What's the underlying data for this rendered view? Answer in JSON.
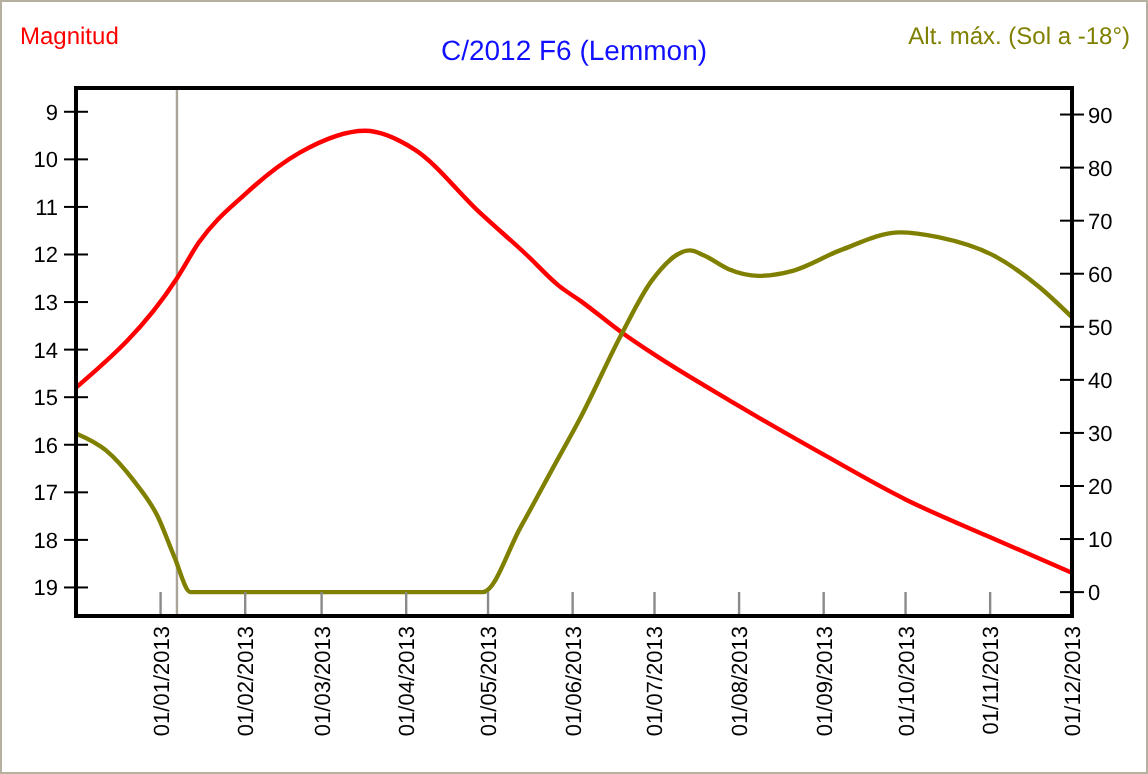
{
  "chart_data": {
    "type": "line",
    "title": "C/2012 F6 (Lemmon)",
    "ylabel": "Magnitud",
    "y2label": "Alt. máx. (Sol a -18°)",
    "xlim": [
      "2012-12-01",
      "2013-12-01"
    ],
    "xticks": [
      {
        "value": "2013-01-01",
        "label": "01/01/2013"
      },
      {
        "value": "2013-02-01",
        "label": "01/02/2013"
      },
      {
        "value": "2013-03-01",
        "label": "01/03/2013"
      },
      {
        "value": "2013-04-01",
        "label": "01/04/2013"
      },
      {
        "value": "2013-05-01",
        "label": "01/05/2013"
      },
      {
        "value": "2013-06-01",
        "label": "01/06/2013"
      },
      {
        "value": "2013-07-01",
        "label": "01/07/2013"
      },
      {
        "value": "2013-08-01",
        "label": "01/08/2013"
      },
      {
        "value": "2013-09-01",
        "label": "01/09/2013"
      },
      {
        "value": "2013-10-01",
        "label": "01/10/2013"
      },
      {
        "value": "2013-11-01",
        "label": "01/11/2013"
      },
      {
        "value": "2013-12-01",
        "label": "01/12/2013"
      }
    ],
    "ylim": [
      19.6,
      8.5
    ],
    "yticks": [
      9,
      10,
      11,
      12,
      13,
      14,
      15,
      16,
      17,
      18,
      19
    ],
    "y2lim": [
      -4.5,
      95
    ],
    "y2ticks": [
      0,
      10,
      20,
      30,
      40,
      50,
      60,
      70,
      80,
      90
    ],
    "grid": false,
    "marker": "none",
    "line_style": "solid",
    "ref_lines": [
      {
        "axis": "x",
        "value": "2013-01-07",
        "color": "#aaa596"
      }
    ],
    "series": [
      {
        "color": "#ff0000",
        "x": [
          "2012-12-01",
          "2013-01-07",
          "2013-01-15",
          "2013-02-01",
          "2013-02-21",
          "2013-03-17",
          "2013-04-04",
          "2013-04-28",
          "2013-05-15",
          "2013-05-27",
          "2013-06-04",
          "2013-06-19",
          "2013-06-30",
          "2013-07-30",
          "2013-09-02",
          "2013-10-01",
          "2013-10-31",
          "2013-12-01"
        ],
        "values": [
          14.8,
          12.5,
          11.75,
          10.73,
          9.86,
          9.4,
          9.79,
          11.12,
          12.0,
          12.66,
          12.98,
          13.64,
          14.07,
          15.12,
          16.24,
          17.15,
          17.92,
          18.69
        ]
      },
      {
        "color": "#808000",
        "axis": "y2",
        "x": [
          "2012-12-01",
          "2012-12-12",
          "2012-12-22",
          "2012-12-31",
          "2013-01-06",
          "2013-01-12",
          "2013-04-29",
          "2013-05-13",
          "2013-05-25",
          "2013-06-04",
          "2013-06-19",
          "2013-06-30",
          "2013-07-14",
          "2013-07-19",
          "2013-07-28",
          "2013-08-08",
          "2013-08-21",
          "2013-09-07",
          "2013-09-29",
          "2013-10-13",
          "2013-11-02",
          "2013-11-19",
          "2013-12-01"
        ],
        "values": [
          29.9,
          26.7,
          21.1,
          14.2,
          6.7,
          0,
          0,
          12.3,
          23.6,
          33,
          48.7,
          58.7,
          64.4,
          63.5,
          60.9,
          59.6,
          60.6,
          64.4,
          67.8,
          66.9,
          63.5,
          57.5,
          51.8
        ]
      }
    ]
  }
}
